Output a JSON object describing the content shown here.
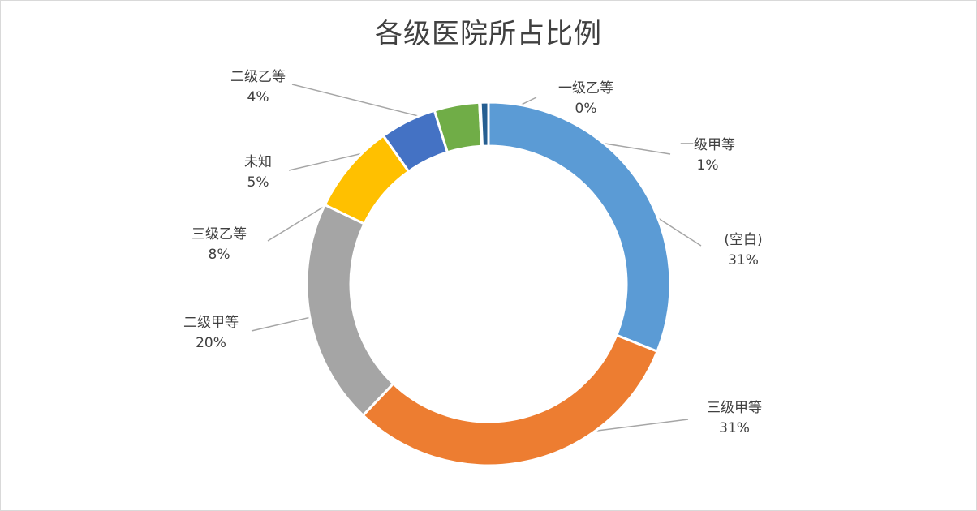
{
  "chart_data": {
    "type": "pie",
    "variant": "donut",
    "title": "各级医院所占比例",
    "slices": [
      {
        "name": "(空白)",
        "value": 31,
        "label": "31%",
        "color": "#5b9bd5"
      },
      {
        "name": "三级甲等",
        "value": 31,
        "label": "31%",
        "color": "#ed7d31"
      },
      {
        "name": "二级甲等",
        "value": 20,
        "label": "20%",
        "color": "#a5a5a5"
      },
      {
        "name": "三级乙等",
        "value": 8,
        "label": "8%",
        "color": "#ffc000"
      },
      {
        "name": "未知",
        "value": 5,
        "label": "5%",
        "color": "#4472c4"
      },
      {
        "name": "二级乙等",
        "value": 4,
        "label": "4%",
        "color": "#70ad47"
      },
      {
        "name": "一级乙等",
        "value": 0.1,
        "label": "0%",
        "color": "#264478"
      },
      {
        "name": "一级甲等",
        "value": 0.7,
        "label": "1%",
        "color": "#255e91"
      }
    ],
    "legend": "none",
    "data_labels": "outside with leader lines"
  }
}
